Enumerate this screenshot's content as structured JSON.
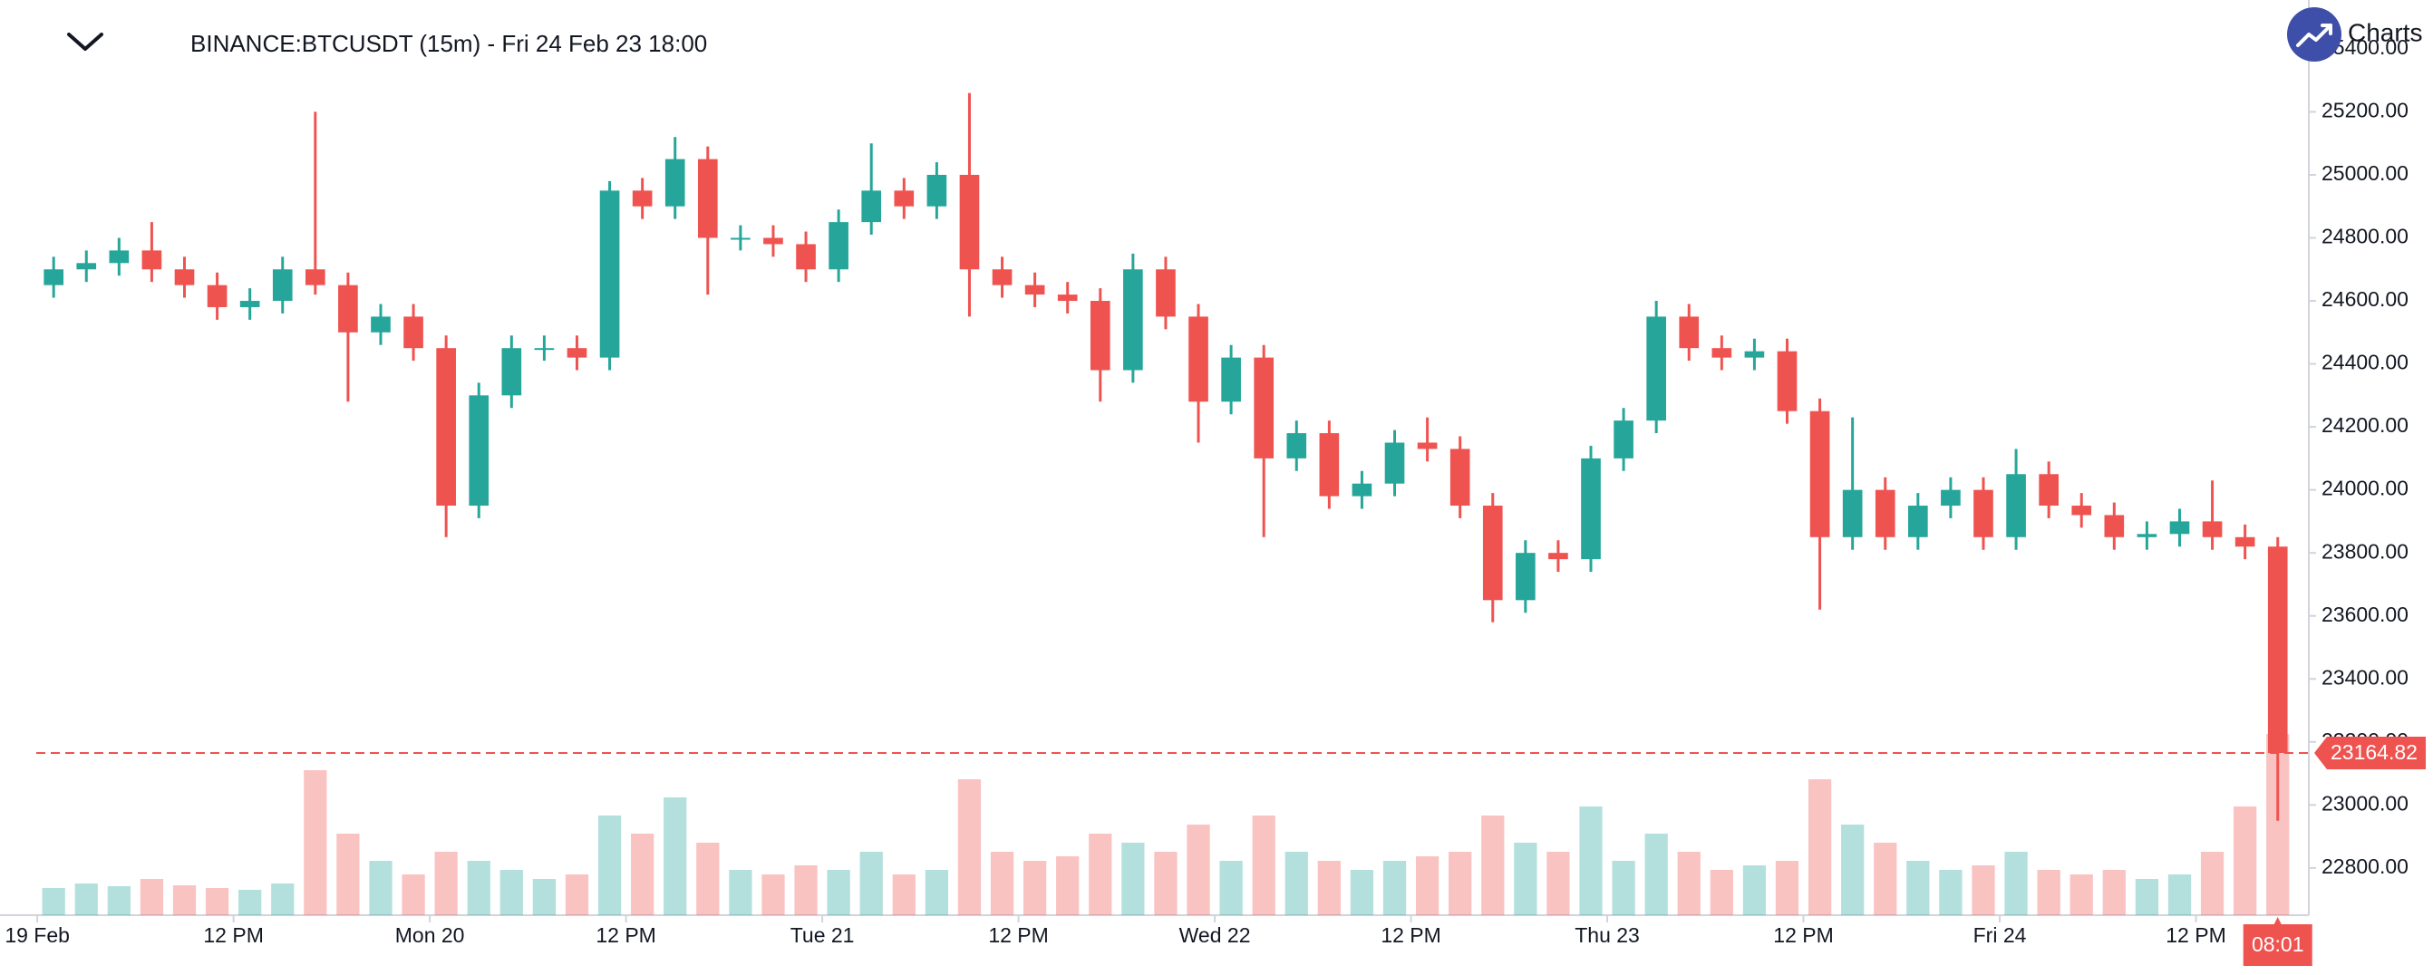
{
  "chart_data": {
    "type": "candlestick",
    "title": "BINANCE:BTCUSDT (15m) - Fri 24 Feb 23 18:00",
    "brand": "Charts",
    "up_color": "#26a69a",
    "down_color": "#ef5350",
    "x": [
      0,
      2,
      4,
      6,
      8,
      10,
      12,
      14,
      16,
      18,
      20,
      22,
      24,
      26,
      28,
      30,
      32,
      34,
      36,
      38,
      40,
      42,
      44,
      46,
      48,
      50,
      52,
      54,
      56,
      58,
      60,
      62,
      64,
      66,
      68,
      70,
      72,
      74,
      76,
      78,
      80,
      82,
      84,
      86,
      88,
      90,
      92,
      94,
      96,
      98,
      100,
      102,
      104,
      106,
      108,
      110,
      112,
      114,
      116,
      118,
      120,
      122,
      124,
      126,
      128,
      130,
      132,
      134,
      136
    ],
    "open": [
      24650,
      24700,
      24720,
      24760,
      24700,
      24650,
      24580,
      24600,
      24700,
      24650,
      24500,
      24550,
      24450,
      23950,
      24300,
      24450,
      24450,
      24420,
      24950,
      24900,
      25050,
      24800,
      24800,
      24780,
      24700,
      24850,
      24950,
      24900,
      25000,
      24700,
      24650,
      24620,
      24600,
      24380,
      24700,
      24550,
      24280,
      24420,
      24100,
      24180,
      23980,
      24020,
      24150,
      24130,
      23950,
      23650,
      23800,
      23780,
      24100,
      24220,
      24550,
      24450,
      24420,
      24440,
      24250,
      23850,
      24000,
      23850,
      23950,
      24000,
      23850,
      24050,
      23950,
      23920,
      23850,
      23860,
      23900,
      23850,
      23820
    ],
    "high": [
      24740,
      24760,
      24800,
      24850,
      24740,
      24690,
      24640,
      24740,
      25200,
      24690,
      24590,
      24590,
      24490,
      24340,
      24490,
      24490,
      24490,
      24980,
      24990,
      25120,
      25090,
      24840,
      24840,
      24820,
      24890,
      25100,
      24990,
      25040,
      25260,
      24740,
      24690,
      24660,
      24640,
      24750,
      24740,
      24590,
      24460,
      24460,
      24220,
      24220,
      24060,
      24190,
      24230,
      24170,
      23990,
      23840,
      23840,
      24140,
      24260,
      24600,
      24590,
      24490,
      24480,
      24480,
      24290,
      24230,
      24040,
      23990,
      24040,
      24040,
      24130,
      24090,
      23990,
      23960,
      23900,
      23940,
      24030,
      23890,
      23850
    ],
    "low": [
      24610,
      24660,
      24680,
      24660,
      24610,
      24540,
      24540,
      24560,
      24620,
      24280,
      24460,
      24410,
      23850,
      23910,
      24260,
      24410,
      24380,
      24380,
      24860,
      24860,
      24620,
      24760,
      24740,
      24660,
      24660,
      24810,
      24860,
      24860,
      24550,
      24610,
      24580,
      24560,
      24280,
      24340,
      24510,
      24150,
      24240,
      23850,
      24060,
      23940,
      23940,
      23980,
      24090,
      23910,
      23580,
      23610,
      23740,
      23740,
      24060,
      24180,
      24410,
      24380,
      24380,
      24210,
      23620,
      23810,
      23810,
      23810,
      23910,
      23810,
      23810,
      23910,
      23880,
      23810,
      23810,
      23820,
      23810,
      23780,
      22950
    ],
    "close": [
      24700,
      24720,
      24760,
      24700,
      24650,
      24580,
      24600,
      24700,
      24650,
      24500,
      24550,
      24450,
      23950,
      24300,
      24450,
      24450,
      24420,
      24950,
      24900,
      25050,
      24800,
      24800,
      24780,
      24700,
      24850,
      24950,
      24900,
      25000,
      24700,
      24650,
      24620,
      24600,
      24380,
      24700,
      24550,
      24280,
      24420,
      24100,
      24180,
      23980,
      24020,
      24150,
      24130,
      23950,
      23650,
      23800,
      23780,
      24100,
      24220,
      24550,
      24450,
      24420,
      24440,
      24250,
      23850,
      24000,
      23850,
      23950,
      24000,
      23850,
      24050,
      23950,
      23920,
      23850,
      23860,
      23900,
      23850,
      23820,
      23164.82
    ],
    "volume": [
      300,
      350,
      320,
      400,
      330,
      300,
      280,
      350,
      1600,
      900,
      600,
      450,
      700,
      600,
      500,
      400,
      450,
      1100,
      900,
      1300,
      800,
      500,
      450,
      550,
      500,
      700,
      450,
      500,
      1500,
      700,
      600,
      650,
      900,
      800,
      700,
      1000,
      600,
      1100,
      700,
      600,
      500,
      600,
      650,
      700,
      1100,
      800,
      700,
      1200,
      600,
      900,
      700,
      500,
      550,
      600,
      1500,
      1000,
      800,
      600,
      500,
      550,
      700,
      500,
      450,
      500,
      400,
      450,
      700,
      1200,
      2000
    ],
    "xlim": [
      -2.28,
      138.9
    ],
    "xticks": [
      {
        "value": 0,
        "label": "19 Feb"
      },
      {
        "value": 12,
        "label": "12 PM"
      },
      {
        "value": 24,
        "label": "Mon 20"
      },
      {
        "value": 36,
        "label": "12 PM"
      },
      {
        "value": 48,
        "label": "Tue 21"
      },
      {
        "value": 60,
        "label": "12 PM"
      },
      {
        "value": 72,
        "label": "Wed 22"
      },
      {
        "value": 84,
        "label": "12 PM"
      },
      {
        "value": 96,
        "label": "Thu 23"
      },
      {
        "value": 108,
        "label": "12 PM"
      },
      {
        "value": 120,
        "label": "Fri 24"
      },
      {
        "value": 132,
        "label": "12 PM"
      }
    ],
    "ylim": [
      22650,
      25555
    ],
    "yticks": [
      {
        "value": 22800,
        "label": "22800.00"
      },
      {
        "value": 23000,
        "label": "23000.00"
      },
      {
        "value": 23200,
        "label": "23200.00"
      },
      {
        "value": 23400,
        "label": "23400.00"
      },
      {
        "value": 23600,
        "label": "23600.00"
      },
      {
        "value": 23800,
        "label": "23800.00"
      },
      {
        "value": 24000,
        "label": "24000.00"
      },
      {
        "value": 24200,
        "label": "24200.00"
      },
      {
        "value": 24400,
        "label": "24400.00"
      },
      {
        "value": 24600,
        "label": "24600.00"
      },
      {
        "value": 24800,
        "label": "24800.00"
      },
      {
        "value": 25000,
        "label": "25000.00"
      },
      {
        "value": 25200,
        "label": "25200.00"
      },
      {
        "value": 25400,
        "label": "25400.00"
      }
    ],
    "grid": false,
    "last_price": 23164.82,
    "countdown": "08:01"
  }
}
